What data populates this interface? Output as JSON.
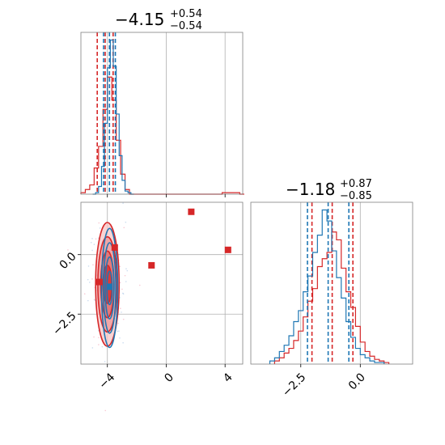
{
  "colors": {
    "red": "#d62728",
    "blue": "#1f77b4",
    "grid": "#b0b0b0"
  },
  "chart_data": [
    {
      "type": "histogram",
      "panel": "param1-marginal",
      "title": {
        "main": "−4.15",
        "plus": "+0.54",
        "minus": "−0.54"
      },
      "xlim": [
        -5.8,
        5.2
      ],
      "x_ticks": [
        -4,
        0,
        4
      ],
      "series": [
        {
          "color": "red",
          "quantiles": [
            -4.69,
            -4.15,
            -3.61
          ],
          "bins_x": [
            -5.8,
            -5.5,
            -5.2,
            -4.9,
            -4.6,
            -4.3,
            -4.0,
            -3.7,
            -3.4,
            -3.1,
            -2.8,
            -2.5,
            2.9,
            3.2,
            3.5,
            3.8,
            4.1,
            4.4,
            4.7,
            5.0
          ],
          "density": [
            0.01,
            0.03,
            0.06,
            0.17,
            0.31,
            0.55,
            0.76,
            0.61,
            0.35,
            0.13,
            0.03,
            0.0,
            0.0,
            0.0,
            0.0,
            0.01,
            0.01,
            0.01,
            0.01,
            0.0
          ]
        },
        {
          "color": "blue",
          "quantiles": [
            -4.26,
            -3.86,
            -3.46
          ],
          "bins_x": [
            -5.0,
            -4.8,
            -4.6,
            -4.4,
            -4.2,
            -4.0,
            -3.8,
            -3.6,
            -3.4,
            -3.2,
            -3.0,
            -2.8,
            -2.6,
            -2.4
          ],
          "density": [
            0.0,
            0.01,
            0.05,
            0.18,
            0.46,
            0.82,
            1.0,
            0.83,
            0.52,
            0.25,
            0.09,
            0.02,
            0.01,
            0.0
          ]
        }
      ]
    },
    {
      "type": "histogram",
      "panel": "param2-marginal",
      "title": {
        "main": "−1.18",
        "plus": "+0.87",
        "minus": "−0.85"
      },
      "xlim": [
        -4.6,
        2.2
      ],
      "x_ticks": [
        -2.5,
        0.0
      ],
      "x_tick_labels": [
        "−2.5",
        "0.0"
      ],
      "series": [
        {
          "color": "red",
          "quantiles": [
            -2.03,
            -1.18,
            -0.31
          ],
          "bins_x": [
            -3.6,
            -3.4,
            -3.2,
            -3.0,
            -2.8,
            -2.6,
            -2.4,
            -2.2,
            -2.0,
            -1.8,
            -1.6,
            -1.4,
            -1.2,
            -1.0,
            -0.8,
            -0.6,
            -0.4,
            -0.2,
            0.0,
            0.2,
            0.4,
            0.6,
            0.8,
            1.0
          ],
          "density": [
            0.02,
            0.04,
            0.07,
            0.1,
            0.15,
            0.21,
            0.3,
            0.4,
            0.48,
            0.62,
            0.67,
            0.71,
            0.84,
            0.79,
            0.61,
            0.46,
            0.36,
            0.24,
            0.14,
            0.08,
            0.05,
            0.03,
            0.02,
            0.01
          ]
        },
        {
          "color": "blue",
          "quantiles": [
            -2.22,
            -1.35,
            -0.48
          ],
          "bins_x": [
            -3.8,
            -3.6,
            -3.4,
            -3.2,
            -3.0,
            -2.8,
            -2.6,
            -2.4,
            -2.2,
            -2.0,
            -1.8,
            -1.6,
            -1.4,
            -1.2,
            -1.0,
            -0.8,
            -0.6,
            -0.4,
            -0.2,
            0.0,
            0.2,
            0.4,
            0.6,
            0.8
          ],
          "density": [
            0.02,
            0.04,
            0.08,
            0.12,
            0.18,
            0.27,
            0.34,
            0.46,
            0.56,
            0.71,
            0.82,
            0.98,
            0.91,
            0.72,
            0.55,
            0.42,
            0.27,
            0.17,
            0.1,
            0.06,
            0.04,
            0.02,
            0.01,
            0.01
          ]
        }
      ]
    },
    {
      "type": "scatter",
      "panel": "joint",
      "xlim": [
        -5.8,
        5.2
      ],
      "ylim": [
        -4.6,
        2.2
      ],
      "x_ticks": [
        -4,
        0,
        4
      ],
      "x_tick_labels": [
        "−4",
        "0",
        "4"
      ],
      "y_ticks": [
        -2.5,
        0.0
      ],
      "y_tick_labels": [
        "−2.5",
        "0.0"
      ],
      "contours": [
        {
          "color": "red",
          "center": [
            -4.0,
            -1.25
          ],
          "radii": [
            [
              0.8,
              2.6
            ],
            [
              0.65,
              2.0
            ],
            [
              0.45,
              1.4
            ],
            [
              0.3,
              0.8
            ]
          ]
        },
        {
          "color": "blue",
          "center": [
            -3.85,
            -1.4
          ],
          "radii": [
            [
              0.55,
              2.5
            ],
            [
              0.42,
              1.9
            ],
            [
              0.3,
              1.3
            ],
            [
              0.18,
              0.7
            ]
          ]
        }
      ],
      "markers": [
        {
          "color": "red",
          "x": [
            -4.55,
            -3.5,
            -1.0,
            1.7,
            4.2
          ],
          "y": [
            -1.15,
            0.3,
            -0.45,
            1.8,
            0.2
          ]
        },
        {
          "color": "blue",
          "x": [
            -3.85
          ],
          "y": [
            -1.35
          ]
        }
      ]
    }
  ]
}
